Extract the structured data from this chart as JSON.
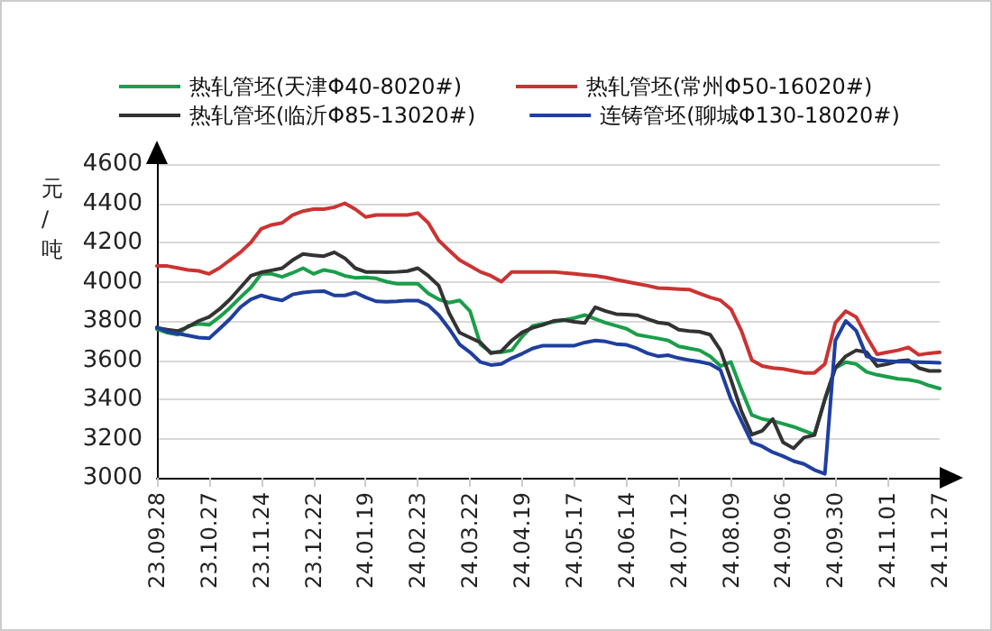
{
  "chart_data": {
    "type": "line",
    "ylabel": "元/吨",
    "legend": "top",
    "grid": "y",
    "marker": "none",
    "line_style": "solid",
    "categories": [
      "23.09.28",
      null,
      null,
      null,
      null,
      "23.10.27",
      null,
      null,
      null,
      null,
      "23.11.24",
      null,
      null,
      null,
      null,
      "23.12.22",
      null,
      null,
      null,
      null,
      "24.01.19",
      null,
      null,
      null,
      null,
      "24.02.23",
      null,
      null,
      null,
      null,
      "24.03.22",
      null,
      null,
      null,
      null,
      "24.04.19",
      null,
      null,
      null,
      null,
      "24.05.17",
      null,
      null,
      null,
      null,
      "24.06.14",
      null,
      null,
      null,
      null,
      "24.07.12",
      null,
      null,
      null,
      null,
      "24.08.09",
      null,
      null,
      null,
      null,
      "24.09.06",
      null,
      null,
      null,
      null,
      "24.09.30",
      null,
      null,
      null,
      null,
      "24.11.01",
      null,
      null,
      null,
      null,
      "24.11.27"
    ],
    "ylim": [
      3000,
      4600
    ],
    "yticks": [
      3000,
      3200,
      3400,
      3600,
      3800,
      4000,
      4200,
      4400,
      4600
    ],
    "series": [
      {
        "name": "热轧管坯(天津Φ40-8020#)",
        "color": "#1a9e4a",
        "values": [
          3758,
          3740,
          3730,
          3775,
          3785,
          3780,
          3820,
          3867,
          3920,
          3970,
          4040,
          4040,
          4025,
          4045,
          4069,
          4040,
          4060,
          4050,
          4030,
          4020,
          4022,
          4017,
          4000,
          3990,
          3990,
          3990,
          3940,
          3910,
          3893,
          3905,
          3850,
          3680,
          3640,
          3640,
          3650,
          3720,
          3775,
          3785,
          3795,
          3805,
          3815,
          3830,
          3810,
          3790,
          3775,
          3760,
          3730,
          3720,
          3711,
          3700,
          3670,
          3660,
          3650,
          3620,
          3570,
          3590,
          3450,
          3320,
          3300,
          3290,
          3275,
          3260,
          3240,
          3220,
          3400,
          3560,
          3590,
          3580,
          3540,
          3525,
          3515,
          3505,
          3500,
          3490,
          3470,
          3455
        ]
      },
      {
        "name": "热轧管坯(常州Φ50-16020#)",
        "color": "#cc3333",
        "values": [
          4080,
          4080,
          4070,
          4060,
          4055,
          4040,
          4070,
          4110,
          4150,
          4200,
          4270,
          4290,
          4300,
          4340,
          4360,
          4370,
          4370,
          4380,
          4400,
          4370,
          4330,
          4340,
          4340,
          4340,
          4340,
          4350,
          4300,
          4210,
          4160,
          4110,
          4080,
          4050,
          4030,
          4000,
          4050,
          4050,
          4050,
          4050,
          4050,
          4045,
          4040,
          4035,
          4030,
          4022,
          4010,
          4000,
          3990,
          3980,
          3968,
          3965,
          3962,
          3960,
          3940,
          3920,
          3905,
          3860,
          3750,
          3600,
          3570,
          3560,
          3555,
          3545,
          3535,
          3535,
          3580,
          3790,
          3850,
          3820,
          3720,
          3630,
          3640,
          3650,
          3665,
          3627,
          3635,
          3640
        ]
      },
      {
        "name": "热轧管坯(临沂Φ85-13020#)",
        "color": "#333333",
        "values": [
          3765,
          3755,
          3748,
          3770,
          3800,
          3820,
          3860,
          3910,
          3970,
          4030,
          4048,
          4058,
          4069,
          4110,
          4141,
          4135,
          4130,
          4150,
          4120,
          4069,
          4050,
          4050,
          4048,
          4050,
          4054,
          4069,
          4030,
          3980,
          3840,
          3740,
          3715,
          3690,
          3635,
          3645,
          3700,
          3742,
          3765,
          3780,
          3800,
          3805,
          3795,
          3790,
          3870,
          3850,
          3835,
          3832,
          3829,
          3810,
          3792,
          3785,
          3755,
          3748,
          3745,
          3730,
          3650,
          3500,
          3340,
          3220,
          3240,
          3300,
          3180,
          3150,
          3205,
          3218,
          3400,
          3560,
          3620,
          3650,
          3640,
          3570,
          3580,
          3595,
          3600,
          3560,
          3545,
          3545
        ]
      },
      {
        "name": "连铸管坯(聊城Φ130-18020#)",
        "color": "#1f3f9f",
        "values": [
          3767,
          3745,
          3736,
          3725,
          3715,
          3711,
          3760,
          3810,
          3870,
          3910,
          3930,
          3915,
          3905,
          3935,
          3945,
          3950,
          3952,
          3930,
          3930,
          3945,
          3920,
          3900,
          3898,
          3900,
          3904,
          3904,
          3880,
          3830,
          3760,
          3680,
          3640,
          3590,
          3575,
          3580,
          3610,
          3633,
          3660,
          3674,
          3674,
          3674,
          3674,
          3690,
          3700,
          3695,
          3682,
          3678,
          3660,
          3635,
          3620,
          3625,
          3610,
          3600,
          3592,
          3580,
          3549,
          3400,
          3290,
          3180,
          3160,
          3130,
          3110,
          3085,
          3070,
          3040,
          3020,
          3700,
          3800,
          3750,
          3620,
          3600,
          3595,
          3592,
          3592,
          3590,
          3588,
          3586
        ]
      }
    ]
  }
}
